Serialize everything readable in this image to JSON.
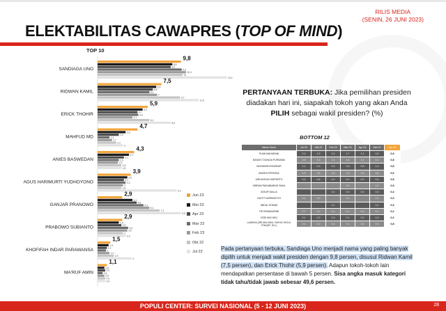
{
  "header": {
    "rilis_line1": "RILIS MEDIA",
    "rilis_line2": "(SENIN, 26 JUNI 2023)",
    "title_main": "ELEKTABILITAS CAWAPRES (",
    "title_italic": "TOP OF MIND",
    "title_end": ")"
  },
  "top10_label": "TOP 10",
  "question": {
    "lead": "PERTANYAAN TERBUKA:",
    "text1": " Jika pemilihan presiden diadakan hari ini, siapakah tokoh yang akan Anda ",
    "bold": "PILIH",
    "text2": " sebagai wakil presiden? (%)"
  },
  "bottom12_label": "BOTTOM 12",
  "bottom_table": {
    "headers": [
      "Nama Tokoh",
      "Jul 22",
      "Okt 22",
      "Feb 23",
      "Mar 23",
      "Apr 23",
      "Mei 23",
      "Jun 23"
    ],
    "rows": [
      {
        "name": "PUAN MAHARANI",
        "vals": [
          "0,3",
          "1,9",
          "1,5",
          "1,7",
          "1,1",
          "0,6",
          "0,9"
        ]
      },
      {
        "name": "BASUKI TJAHAJA PURNAMA",
        "vals": [
          "0,8",
          "1,3",
          "1,1",
          "1,4",
          "1,2",
          "1,0",
          "0,8"
        ]
      },
      {
        "name": "MUHAIMIN ISKANDAR",
        "vals": [
          "0,1",
          "0,3",
          "0,9",
          "0,6",
          "0,8",
          "1,3",
          "0,8"
        ]
      },
      {
        "name": "ANDIKA PERKASA",
        "vals": [
          "1,9",
          "2,6",
          "1,6",
          "1,3",
          "0,3",
          "0,8",
          "0,6"
        ]
      },
      {
        "name": "AIRLANGGA HARTARTO",
        "vals": [
          "0,2",
          "0,6",
          "0,2",
          "0,1",
          "0,3",
          "0,4",
          "0,5"
        ]
      },
      {
        "name": "GIBRAN RAKABUMING RAKA",
        "vals": [
          "",
          "",
          "",
          "0,1",
          "",
          "0,2",
          "0,5"
        ]
      },
      {
        "name": "ASSJIF MALLA",
        "vals": [
          "",
          "",
          "0,4",
          "0,5",
          "0,5",
          "0,5",
          "0,4"
        ]
      },
      {
        "name": "GATOT NURMANTYO",
        "vals": [
          "0,1",
          "0,2",
          "",
          "0,1",
          "",
          "0,1",
          "0,4"
        ]
      },
      {
        "name": "ABDUL SOMAD",
        "vals": [
          "",
          "",
          "0,1",
          "",
          "",
          "0,2",
          "0,3"
        ]
      },
      {
        "name": "TRI RISMAHARINI",
        "vals": [
          "0,7",
          "0,2",
          "0,1",
          "0,1",
          "0,3",
          "0,1",
          "0,2"
        ]
      },
      {
        "name": "EDDI MULYADI",
        "vals": [
          "0,1",
          "0,3",
          "0,3",
          "0,1",
          "0,2",
          "0,3",
          "0,2"
        ]
      },
      {
        "name": "LAINNYA (SRI MULYANI, YAHYA CHOLIL STAQUF, DLL)",
        "vals": [
          "0,1",
          "0,2",
          "0,4",
          "0,1",
          "0,2",
          "0,3",
          "0,8"
        ]
      }
    ]
  },
  "note": {
    "hl1": "Pada pertanyaan terbuka, Sandiaga Uno menjadi nama yang paling banyak dipilih untuk menjadi wakil presiden dengan 9,8 persen, disusul Ridwan Kamil (7,5 persen), dan Erick Thohir (5,9 persen).",
    "plain": " Adapun tokoh-tokoh lain mendapatkan persentase di bawah 5 persen. ",
    "bold": "Sisa angka masuk kategori tidak tahu/tidak jawab sebesar 49,6 persen."
  },
  "footer": {
    "text": "POPULI CENTER: SURVEI NASIONAL (5 - 12 JUNI 2023)",
    "page": "28"
  },
  "colors": {
    "accent_red": "#d9261c",
    "jun23": "#f2a43a",
    "mei23": "#1a1a1a",
    "apr23": "#4a4a4a",
    "mar23": "#6e6e6e",
    "feb23": "#9a9a9a",
    "okt22": "#c4c4c4",
    "jul22": "#e2e2e2"
  },
  "chart_data": {
    "type": "bar",
    "orientation": "horizontal",
    "title": "TOP 10",
    "categories": [
      "SANDIAGA UNO",
      "RIDWAN KAMIL",
      "ERICK THOHIR",
      "MAHFUD MD",
      "ANIES BASWEDAN",
      "AGUS HARIMURTI YUDHOYONO",
      "GANJAR PRANOWO",
      "PRABOWO SUBIANTO",
      "KHOFIFAH INDAR PARAWANSA",
      "MA'RUF AMIN"
    ],
    "series": [
      {
        "name": "Jun 23",
        "values": [
          9.8,
          7.5,
          5.9,
          4.7,
          4.3,
          3.9,
          2.9,
          2.9,
          1.5,
          1.1
        ]
      },
      {
        "name": "Mei 23",
        "values": [
          8.8,
          6.9,
          5.3,
          3.3,
          3.7,
          3.5,
          4.1,
          2.5,
          1.3,
          0.8
        ]
      },
      {
        "name": "Apr 23",
        "values": [
          8.6,
          6.5,
          4.7,
          2.5,
          3.1,
          3.1,
          4.6,
          2.8,
          1.1,
          0.9
        ]
      },
      {
        "name": "Mar 23",
        "values": [
          9.9,
          6.1,
          4.8,
          1.4,
          2.5,
          3.3,
          5.4,
          3.6,
          1.0,
          0.6
        ]
      },
      {
        "name": "Feb 23",
        "values": [
          10.4,
          7.0,
          4.1,
          1.7,
          2.4,
          3.0,
          6.1,
          3.5,
          1.4,
          0.8
        ]
      },
      {
        "name": "Okt 22",
        "values": [
          10.0,
          9.7,
          6.1,
          2.2,
          2.8,
          2.8,
          7.3,
          3.0,
          1.9,
          0.9
        ]
      },
      {
        "name": "Jul 22",
        "values": [
          15.2,
          11.9,
          8.6,
          3.0,
          2.8,
          9.3,
          9.8,
          3.3,
          4.0,
          0.9
        ]
      }
    ],
    "legend_position": "right",
    "grid": false
  }
}
